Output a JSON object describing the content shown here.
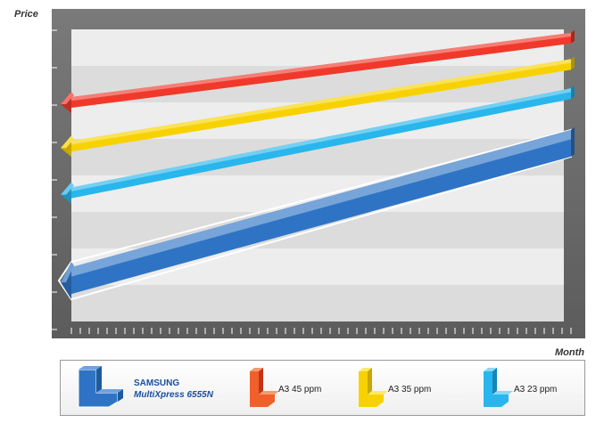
{
  "chart_data": {
    "type": "line",
    "xlabel": "Month",
    "ylabel": "Price",
    "x": [
      0,
      1
    ],
    "xlim": [
      0,
      1
    ],
    "ylim": [
      0,
      1
    ],
    "series": [
      {
        "name": "A3 45 ppm",
        "color": "#f0392b",
        "values": [
          0.75,
          0.97
        ]
      },
      {
        "name": "A3 35 ppm",
        "color": "#f7d200",
        "values": [
          0.6,
          0.88
        ]
      },
      {
        "name": "A3 23 ppm",
        "color": "#29b6ec",
        "values": [
          0.44,
          0.78
        ]
      },
      {
        "name": "SAMSUNG MultiXpress 6555N",
        "color": "#2f74c4",
        "values": [
          0.14,
          0.61
        ]
      }
    ],
    "grid": true,
    "legend_position": "bottom"
  },
  "legend": {
    "samsung_line1": "SAMSUNG",
    "samsung_line2": "MultiXpress 6555N",
    "a3_45": "A3 45 ppm",
    "a3_35": "A3 35 ppm",
    "a3_23": "A3 23 ppm"
  },
  "colors": {
    "frame": "#6e6e6e",
    "band_light": "#ededed",
    "band_dark": "#dcdcdc"
  }
}
